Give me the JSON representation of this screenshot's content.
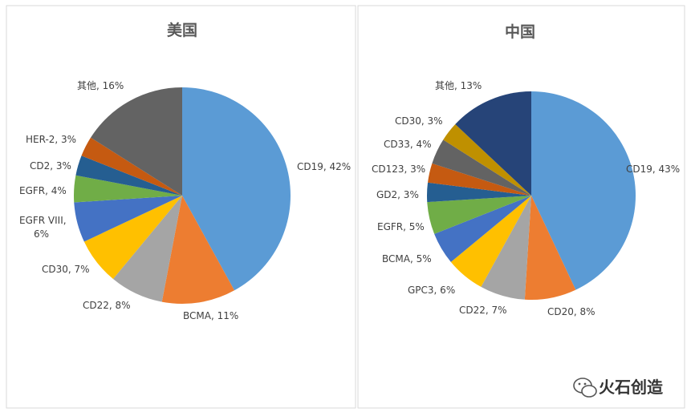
{
  "chart_data": [
    {
      "type": "pie",
      "title": "美国",
      "slices": [
        {
          "label": "CD19, 42%",
          "value": 42,
          "color": "#5b9bd5"
        },
        {
          "label": "BCMA, 11%",
          "value": 11,
          "color": "#ed7d31"
        },
        {
          "label": "CD22, 8%",
          "value": 8,
          "color": "#a5a5a5"
        },
        {
          "label": "CD30, 7%",
          "value": 7,
          "color": "#ffc000"
        },
        {
          "label": "EGFR VIII,|6%",
          "value": 6,
          "color": "#4472c4"
        },
        {
          "label": "EGFR, 4%",
          "value": 4,
          "color": "#70ad47"
        },
        {
          "label": "CD2, 3%",
          "value": 3,
          "color": "#255e91"
        },
        {
          "label": "HER-2, 3%",
          "value": 3,
          "color": "#c55a11"
        },
        {
          "label": "其他, 16%",
          "value": 16,
          "color": "#636363"
        }
      ]
    },
    {
      "type": "pie",
      "title": "中国",
      "slices": [
        {
          "label": "CD19, 43%",
          "value": 43,
          "color": "#5b9bd5"
        },
        {
          "label": "CD20, 8%",
          "value": 8,
          "color": "#ed7d31"
        },
        {
          "label": "CD22, 7%",
          "value": 7,
          "color": "#a5a5a5"
        },
        {
          "label": "GPC3, 6%",
          "value": 6,
          "color": "#ffc000"
        },
        {
          "label": "BCMA, 5%",
          "value": 5,
          "color": "#4472c4"
        },
        {
          "label": "EGFR, 5%",
          "value": 5,
          "color": "#70ad47"
        },
        {
          "label": "GD2, 3%",
          "value": 3,
          "color": "#255e91"
        },
        {
          "label": "CD123, 3%",
          "value": 3,
          "color": "#c55a11"
        },
        {
          "label": "CD33, 4%",
          "value": 4,
          "color": "#636363"
        },
        {
          "label": "CD30, 3%",
          "value": 3,
          "color": "#bf9000"
        },
        {
          "label": "其他, 13%",
          "value": 13,
          "color": "#264478"
        }
      ]
    }
  ],
  "watermark": {
    "text": "火石创造",
    "icon": "wechat-icon"
  }
}
